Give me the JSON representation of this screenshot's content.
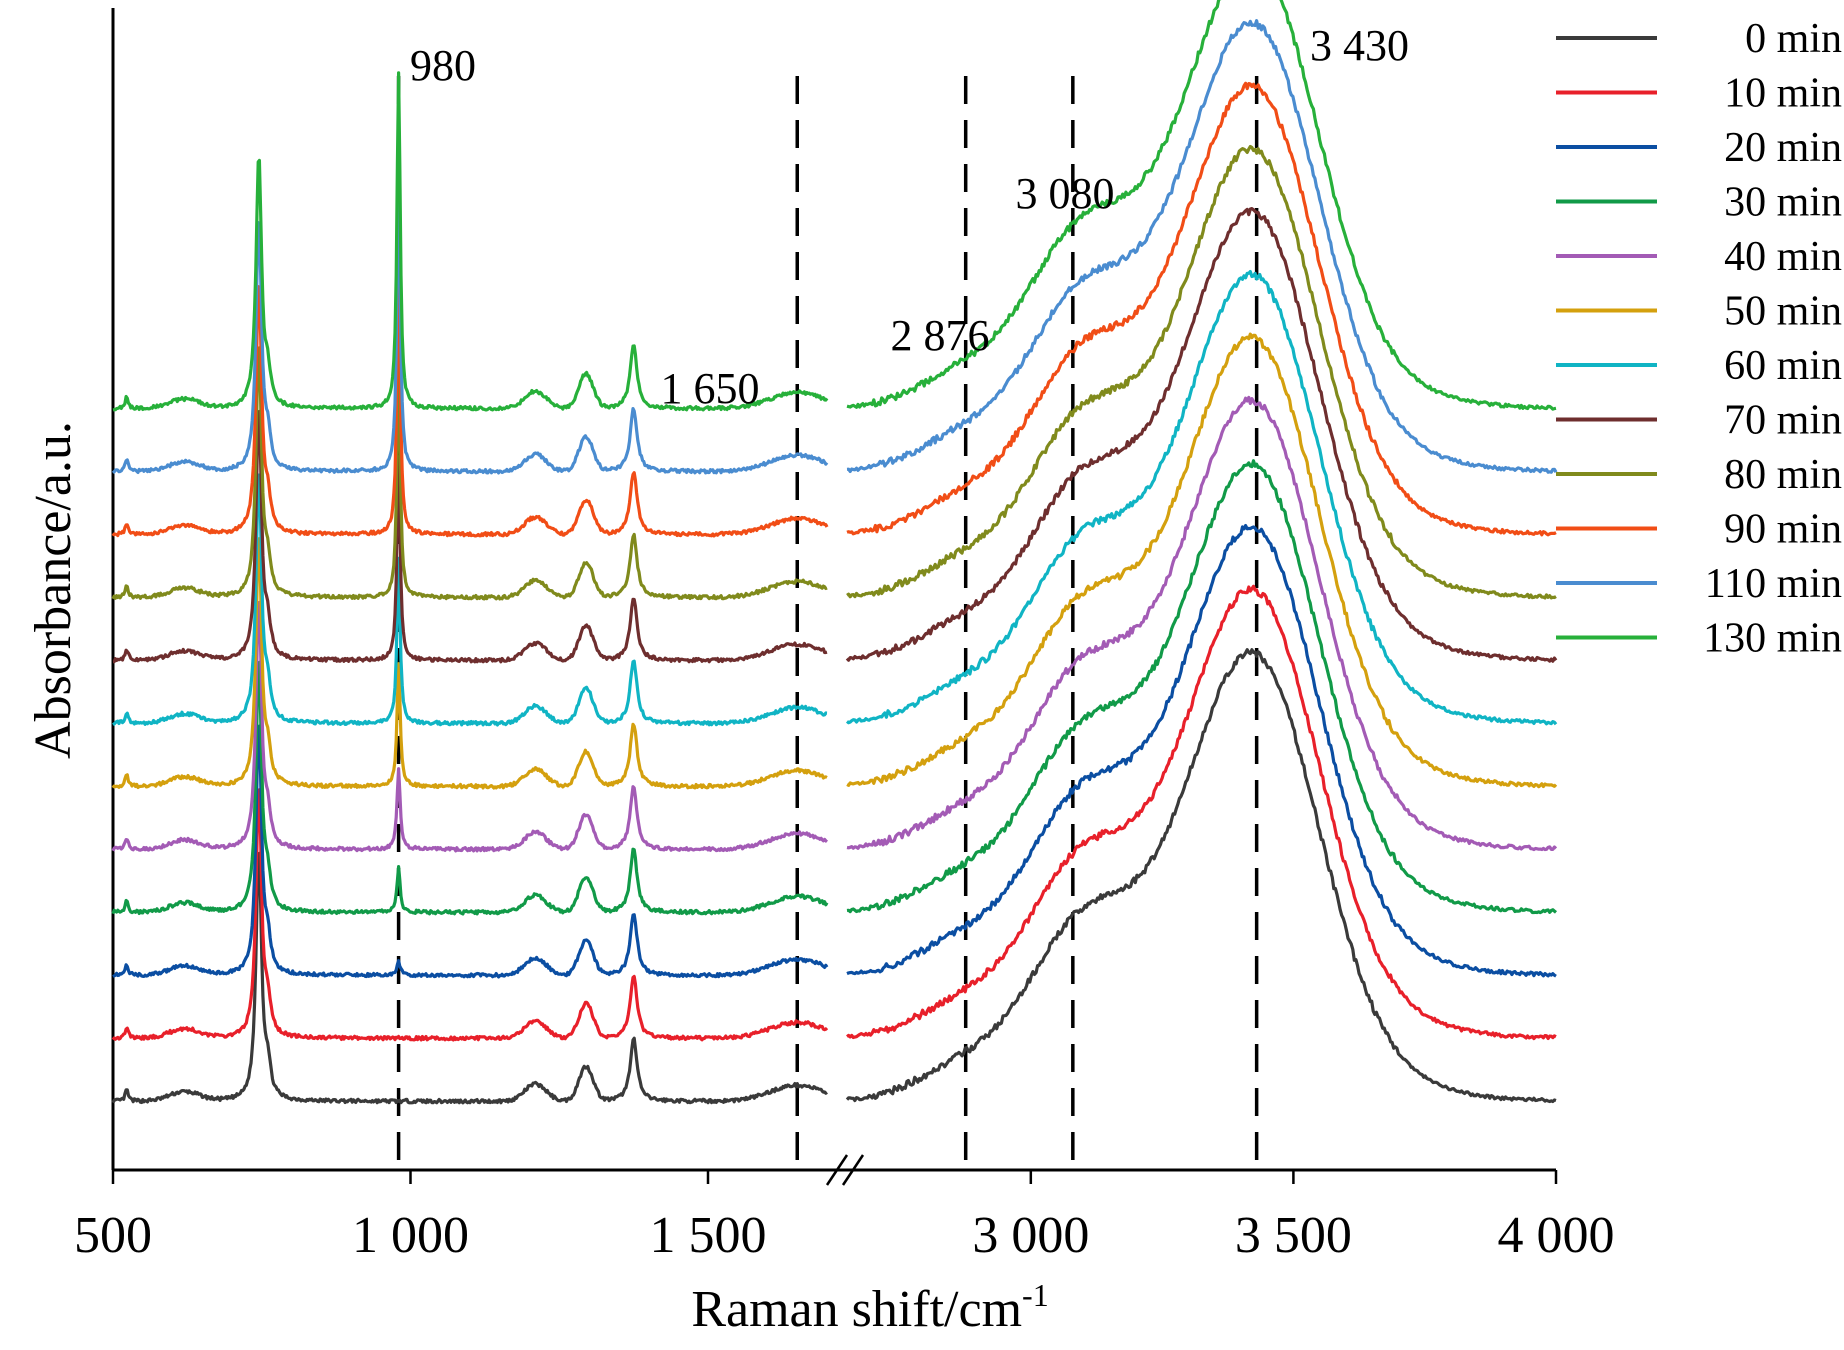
{
  "chart_data": {
    "type": "line",
    "title": "",
    "xlabel": "Raman shift/cm",
    "xlabel_superscript": "-1",
    "ylabel": "Absorbance/a.u.",
    "x_axis_break": true,
    "x_segments": [
      {
        "range": [
          500,
          1700
        ],
        "ticks": [
          500,
          1000,
          1500
        ],
        "tick_labels": [
          "500",
          "1 000",
          "1 500"
        ]
      },
      {
        "range": [
          2650,
          4000
        ],
        "ticks": [
          3000,
          3500,
          4000
        ],
        "tick_labels": [
          "3 000",
          "3 500",
          "4 000"
        ]
      }
    ],
    "y_ticks_shown": false,
    "grid": false,
    "legend_position": "top-right",
    "stacked_offset": true,
    "peak_markers": [
      {
        "x": 980,
        "label": "980"
      },
      {
        "x": 1650,
        "label": "1 650"
      },
      {
        "x": 2876,
        "label": "2 876"
      },
      {
        "x": 3080,
        "label": "3 080"
      },
      {
        "x": 3430,
        "label": "3 430"
      }
    ],
    "series": [
      {
        "name": "0 min",
        "color": "#3a3a3a",
        "baseline": 0.06,
        "p980": 0.0
      },
      {
        "name": "10 min",
        "color": "#e8202a",
        "baseline": 0.115,
        "p980": 0.0
      },
      {
        "name": "20 min",
        "color": "#0b4ea2",
        "baseline": 0.17,
        "p980": 0.04
      },
      {
        "name": "30 min",
        "color": "#119a48",
        "baseline": 0.225,
        "p980": 0.12
      },
      {
        "name": "40 min",
        "color": "#a35bb5",
        "baseline": 0.28,
        "p980": 0.22
      },
      {
        "name": "50 min",
        "color": "#d4a00e",
        "baseline": 0.335,
        "p980": 0.33
      },
      {
        "name": "60 min",
        "color": "#10b4c4",
        "baseline": 0.39,
        "p980": 0.45
      },
      {
        "name": "70 min",
        "color": "#6e2e2e",
        "baseline": 0.445,
        "p980": 0.56
      },
      {
        "name": "80 min",
        "color": "#808a1c",
        "baseline": 0.5,
        "p980": 0.66
      },
      {
        "name": "90 min",
        "color": "#f14d16",
        "baseline": 0.555,
        "p980": 0.76
      },
      {
        "name": "110 min",
        "color": "#4a8cd0",
        "baseline": 0.61,
        "p980": 0.84
      },
      {
        "name": "130 min",
        "color": "#27b03a",
        "baseline": 0.665,
        "p980": 0.92
      }
    ]
  }
}
